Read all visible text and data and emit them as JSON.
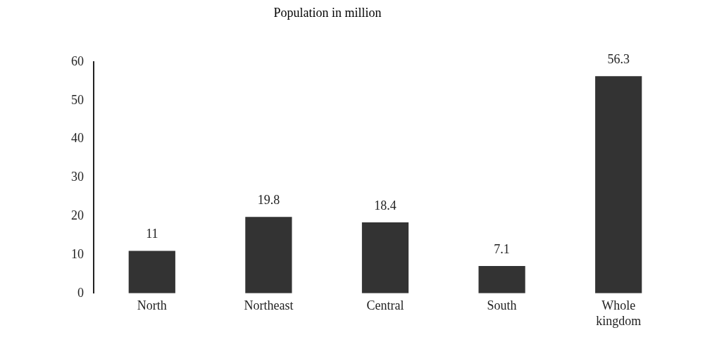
{
  "chart_data": {
    "type": "bar",
    "title": "Population in million",
    "categories": [
      "North",
      "Northeast",
      "Central",
      "South",
      "Whole kingdom"
    ],
    "values": [
      11,
      19.8,
      18.4,
      7.1,
      56.3
    ],
    "color": "#333333",
    "ylim": [
      0,
      60
    ],
    "yticks": [
      0,
      10,
      20,
      30,
      40,
      50,
      60
    ],
    "grid": false,
    "legend": false,
    "data_labels": true
  }
}
